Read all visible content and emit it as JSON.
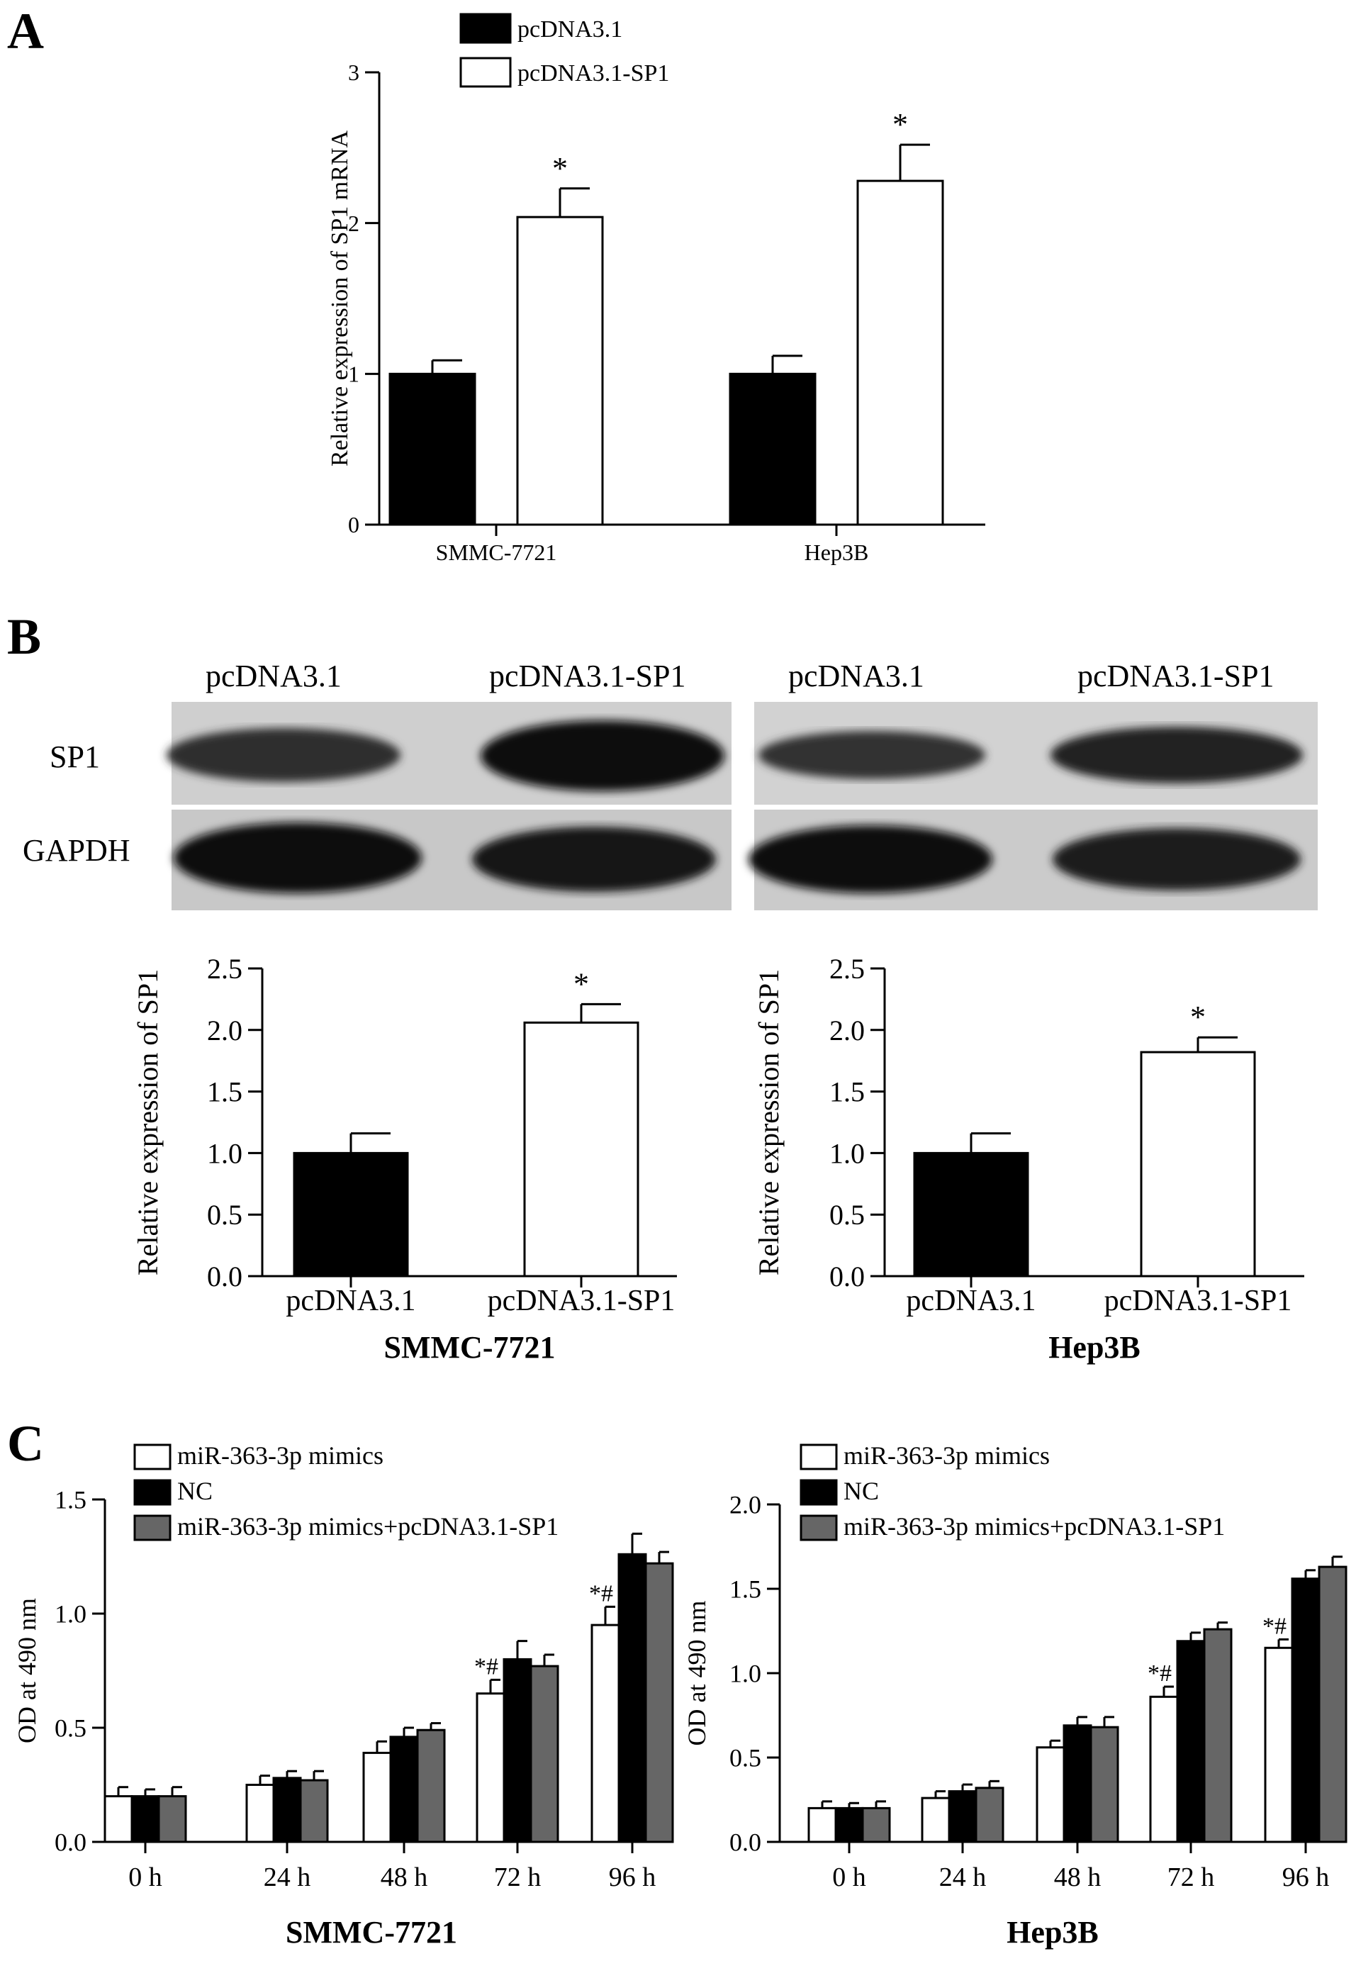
{
  "panels": {
    "A": "A",
    "B": "B",
    "C": "C"
  },
  "blot": {
    "row_labels": [
      "SP1",
      "GAPDH"
    ],
    "left_lane_labels": [
      "pcDNA3.1",
      "pcDNA3.1-SP1"
    ],
    "right_lane_labels": [
      "pcDNA3.1",
      "pcDNA3.1-SP1"
    ]
  },
  "colors": {
    "black": "#000000",
    "white": "#ffffff",
    "grey": "#666666"
  },
  "chart_data": [
    {
      "id": "A",
      "type": "bar",
      "categories": [
        "SMMC-7721",
        "Hep3B"
      ],
      "series": [
        {
          "name": "pcDNA3.1",
          "values": [
            1.0,
            1.0
          ],
          "errors": [
            0.09,
            0.12
          ],
          "color": "#000000"
        },
        {
          "name": "pcDNA3.1-SP1",
          "values": [
            2.04,
            2.28
          ],
          "errors": [
            0.19,
            0.24
          ],
          "color": "#ffffff"
        }
      ],
      "annotations": [
        {
          "category": 0,
          "series": 1,
          "text": "*"
        },
        {
          "category": 1,
          "series": 1,
          "text": "*"
        }
      ],
      "ylabel": "Relative expression of SP1 mRNA",
      "xlabel": "",
      "ylim": [
        0,
        3
      ],
      "yticks": [
        "0",
        "1",
        "2",
        "3"
      ],
      "legend": "top-left"
    },
    {
      "id": "B1",
      "type": "bar",
      "categories": [
        "pcDNA3.1",
        "pcDNA3.1-SP1"
      ],
      "values": [
        1.0,
        2.06
      ],
      "errors": [
        0.16,
        0.15
      ],
      "colors": [
        "#000000",
        "#ffffff"
      ],
      "annotations": [
        {
          "category": 1,
          "text": "*"
        }
      ],
      "ylabel": "Relative expression of SP1",
      "xlabel": "SMMC-7721",
      "ylim": [
        0,
        2.5
      ],
      "yticks": [
        "0.0",
        "0.5",
        "1.0",
        "1.5",
        "2.0",
        "2.5"
      ]
    },
    {
      "id": "B2",
      "type": "bar",
      "categories": [
        "pcDNA3.1",
        "pcDNA3.1-SP1"
      ],
      "values": [
        1.0,
        1.82
      ],
      "errors": [
        0.16,
        0.12
      ],
      "colors": [
        "#000000",
        "#ffffff"
      ],
      "annotations": [
        {
          "category": 1,
          "text": "*"
        }
      ],
      "ylabel": "Relative expression of SP1",
      "xlabel": "Hep3B",
      "ylim": [
        0,
        2.5
      ],
      "yticks": [
        "0.0",
        "0.5",
        "1.0",
        "1.5",
        "2.0",
        "2.5"
      ]
    },
    {
      "id": "C1",
      "type": "bar",
      "categories": [
        "0 h",
        "24 h",
        "48 h",
        "72 h",
        "96 h"
      ],
      "series": [
        {
          "name": "miR-363-3p mimics",
          "values": [
            0.2,
            0.25,
            0.39,
            0.65,
            0.95
          ],
          "errors": [
            0.04,
            0.04,
            0.05,
            0.06,
            0.08
          ],
          "color": "#ffffff"
        },
        {
          "name": "NC",
          "values": [
            0.2,
            0.28,
            0.46,
            0.8,
            1.26
          ],
          "errors": [
            0.03,
            0.03,
            0.04,
            0.08,
            0.09
          ],
          "color": "#000000"
        },
        {
          "name": "miR-363-3p mimics+pcDNA3.1-SP1",
          "values": [
            0.2,
            0.27,
            0.49,
            0.77,
            1.22
          ],
          "errors": [
            0.04,
            0.04,
            0.03,
            0.05,
            0.05
          ],
          "color": "#666666"
        }
      ],
      "annotations": [
        {
          "category": 3,
          "series": 0,
          "text": "*#"
        },
        {
          "category": 4,
          "series": 0,
          "text": "*#"
        }
      ],
      "ylabel": "OD at 490 nm",
      "xlabel": "SMMC-7721",
      "ylim": [
        0,
        1.5
      ],
      "yticks": [
        "0.0",
        "0.5",
        "1.0",
        "1.5"
      ],
      "legend": "top-left"
    },
    {
      "id": "C2",
      "type": "bar",
      "categories": [
        "0 h",
        "24 h",
        "48 h",
        "72 h",
        "96 h"
      ],
      "series": [
        {
          "name": "miR-363-3p mimics",
          "values": [
            0.2,
            0.26,
            0.56,
            0.86,
            1.15
          ],
          "errors": [
            0.04,
            0.04,
            0.04,
            0.06,
            0.05
          ],
          "color": "#ffffff"
        },
        {
          "name": "NC",
          "values": [
            0.2,
            0.3,
            0.69,
            1.19,
            1.56
          ],
          "errors": [
            0.03,
            0.04,
            0.05,
            0.05,
            0.05
          ],
          "color": "#000000"
        },
        {
          "name": "miR-363-3p mimics+pcDNA3.1-SP1",
          "values": [
            0.2,
            0.32,
            0.68,
            1.26,
            1.63
          ],
          "errors": [
            0.04,
            0.04,
            0.06,
            0.04,
            0.06
          ],
          "color": "#666666"
        }
      ],
      "annotations": [
        {
          "category": 3,
          "series": 0,
          "text": "*#"
        },
        {
          "category": 4,
          "series": 0,
          "text": "*#"
        }
      ],
      "ylabel": "OD at 490 nm",
      "xlabel": "Hep3B",
      "ylim": [
        0,
        2.0
      ],
      "yticks": [
        "0.0",
        "0.5",
        "1.0",
        "1.5",
        "2.0"
      ],
      "legend": "top-left"
    }
  ]
}
